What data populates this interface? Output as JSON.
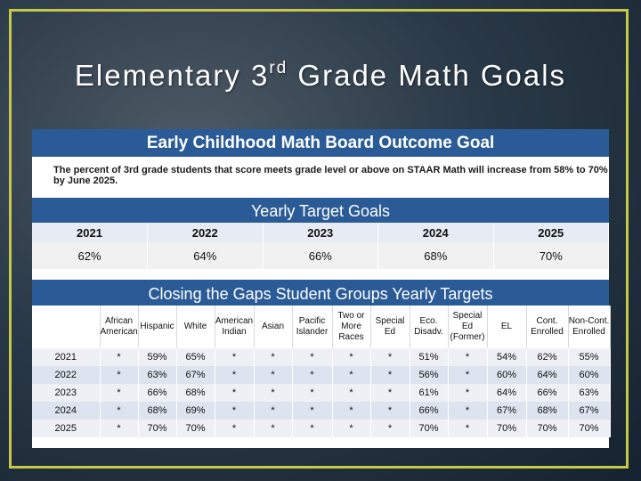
{
  "slide": {
    "title_prefix": "Elementary 3",
    "title_sup": "rd",
    "title_suffix": " Grade Math Goals"
  },
  "panel": {
    "header": "Early Childhood Math Board Outcome Goal",
    "goal_text": "The percent of 3rd grade students that score meets grade level or above on STAAR Math will increase from 58% to 70% by June 2025.",
    "yearly_header": "Yearly Target Goals",
    "years": [
      "2021",
      "2022",
      "2023",
      "2024",
      "2025"
    ],
    "targets": [
      "62%",
      "64%",
      "66%",
      "68%",
      "70%"
    ],
    "gaps_header": "Closing the Gaps Student Groups Yearly Targets",
    "group_columns": [
      "",
      "African American",
      "Hispanic",
      "White",
      "American Indian",
      "Asian",
      "Pacific Islander",
      "Two or More Races",
      "Special Ed",
      "Eco. Disadv.",
      "Special Ed (Former)",
      "EL",
      "Cont. Enrolled",
      "Non-Cont. Enrolled"
    ],
    "group_rows": [
      [
        "2021",
        "*",
        "59%",
        "65%",
        "*",
        "*",
        "*",
        "*",
        "*",
        "51%",
        "*",
        "54%",
        "62%",
        "55%"
      ],
      [
        "2022",
        "*",
        "63%",
        "67%",
        "*",
        "*",
        "*",
        "*",
        "*",
        "56%",
        "*",
        "60%",
        "64%",
        "60%"
      ],
      [
        "2023",
        "*",
        "66%",
        "68%",
        "*",
        "*",
        "*",
        "*",
        "*",
        "61%",
        "*",
        "64%",
        "66%",
        "63%"
      ],
      [
        "2024",
        "*",
        "68%",
        "69%",
        "*",
        "*",
        "*",
        "*",
        "*",
        "66%",
        "*",
        "67%",
        "68%",
        "67%"
      ],
      [
        "2025",
        "*",
        "70%",
        "70%",
        "*",
        "*",
        "*",
        "*",
        "*",
        "70%",
        "*",
        "70%",
        "70%",
        "70%"
      ]
    ]
  },
  "colors": {
    "frame": "#c7c84a",
    "header_blue": "#2a5b96",
    "row_light": "#eef0f5",
    "row_dark": "#dde3ef"
  }
}
